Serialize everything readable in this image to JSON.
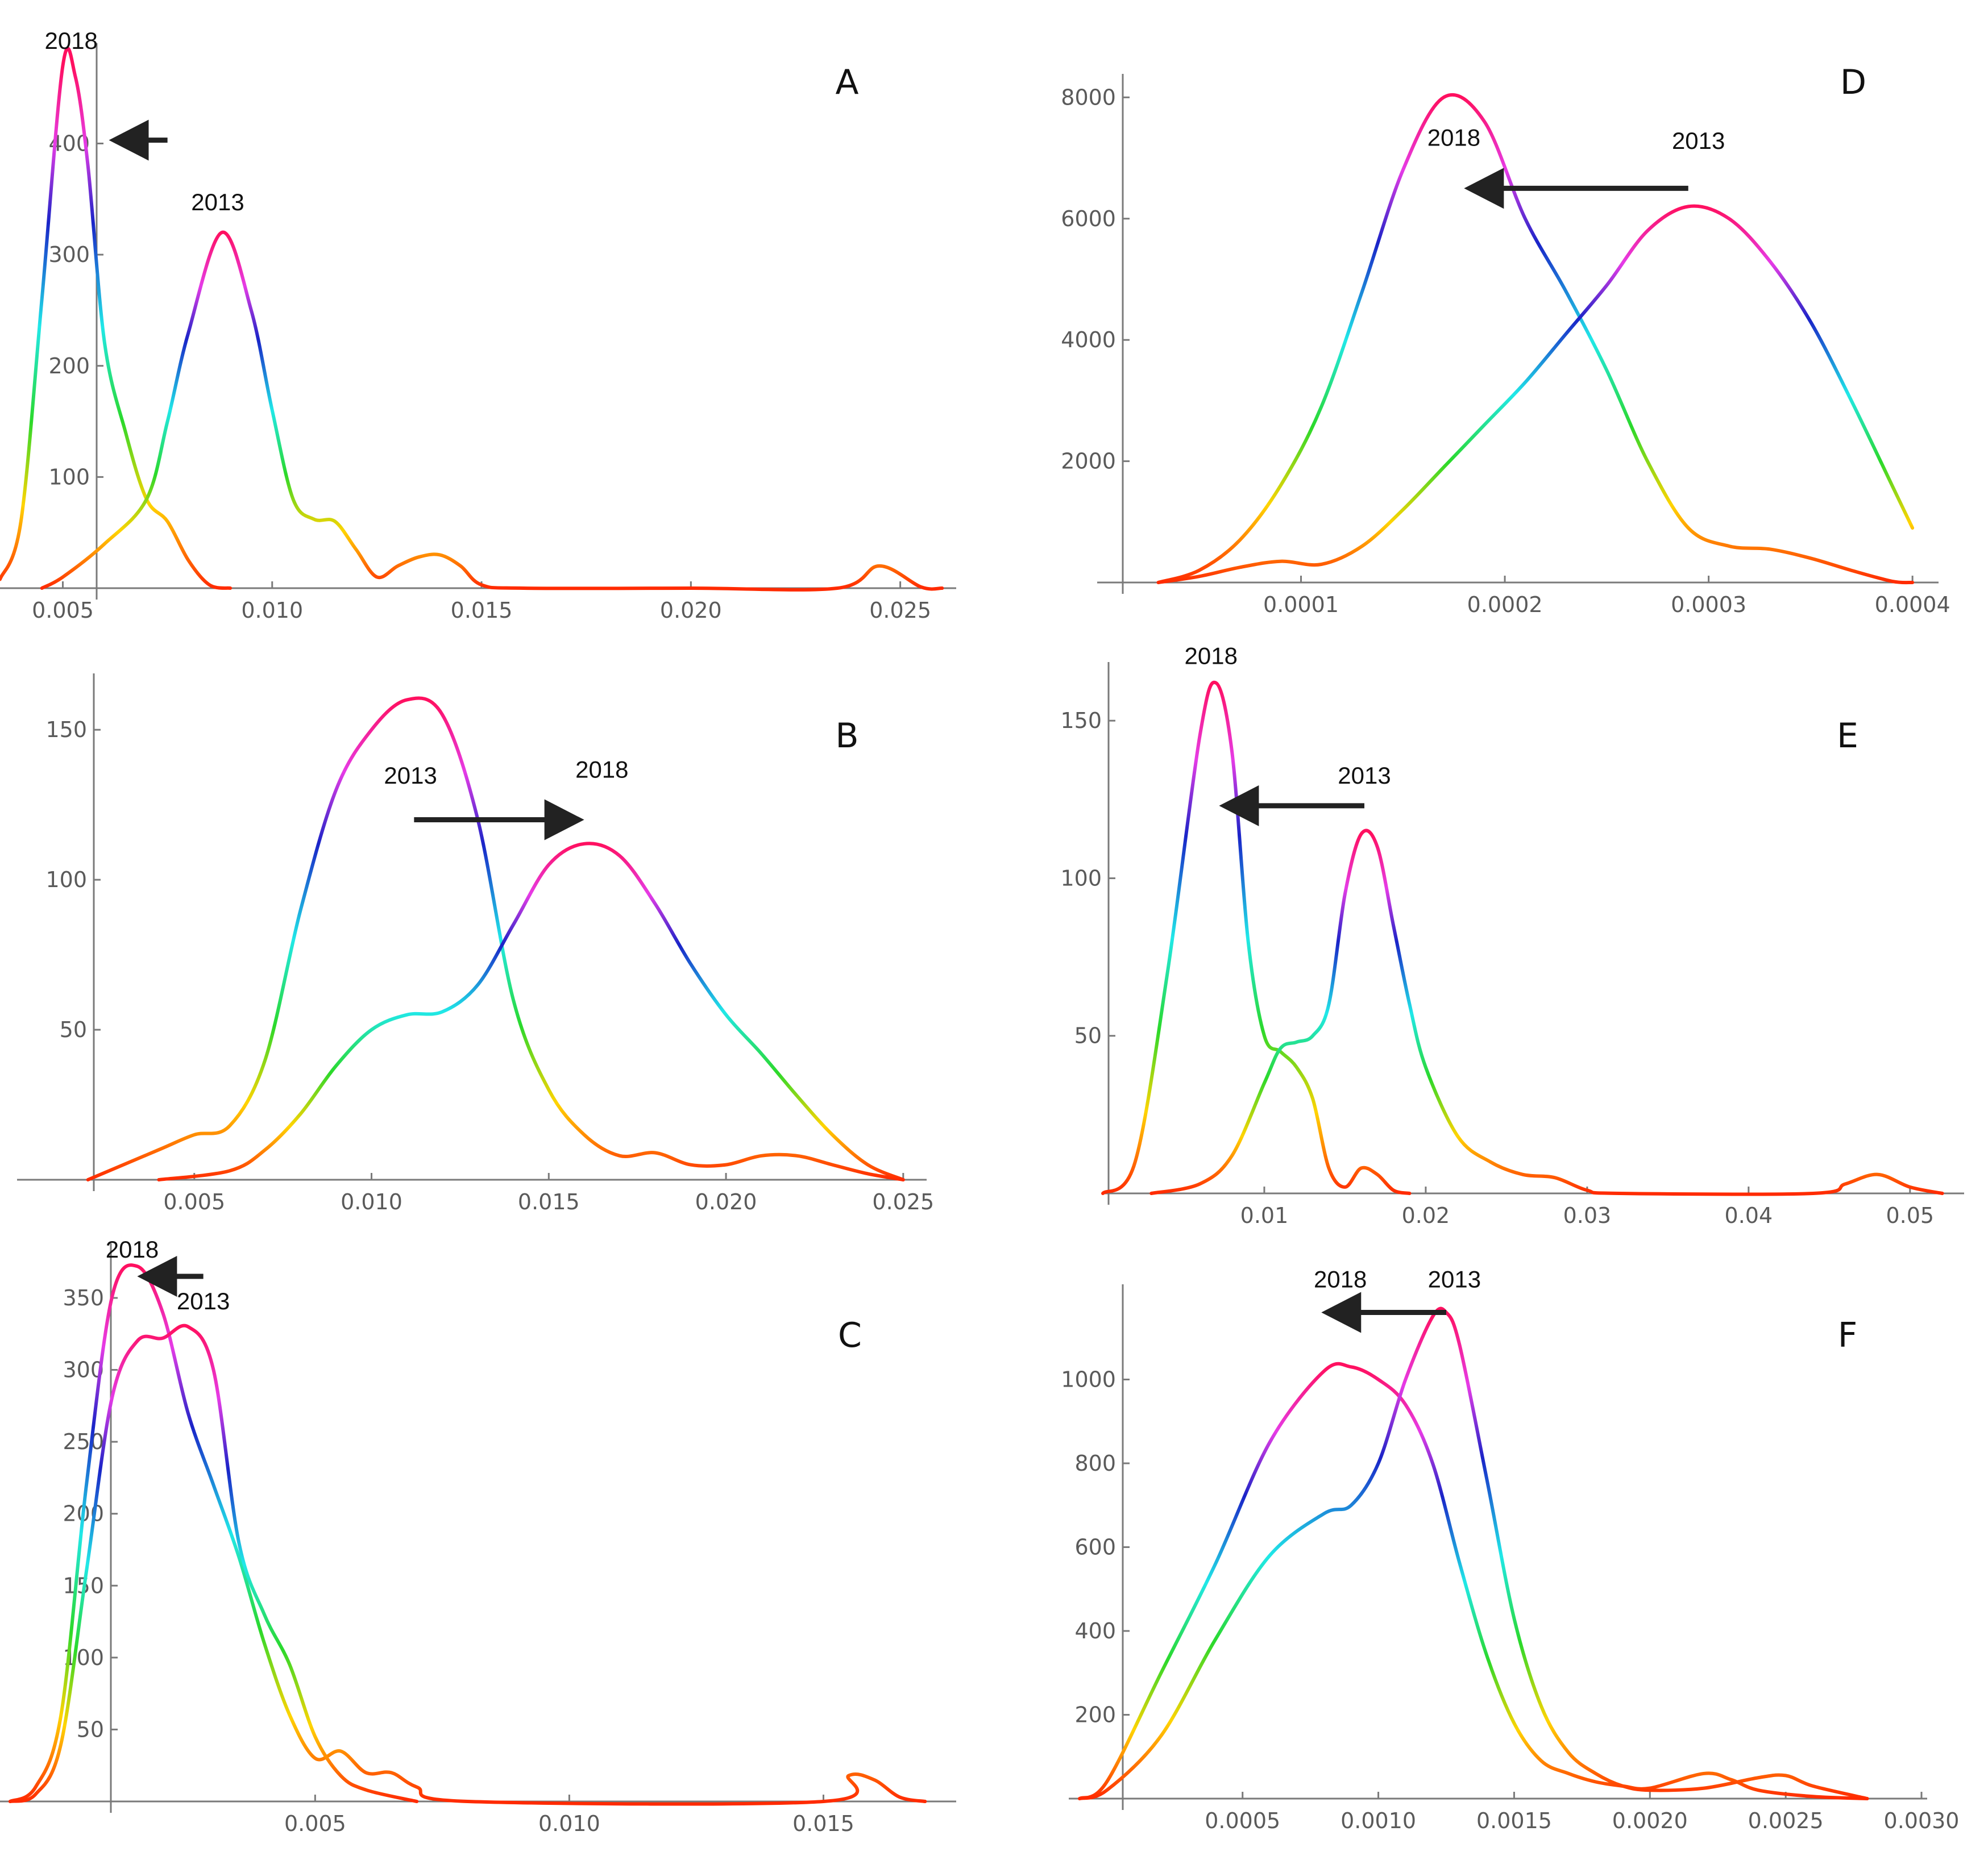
{
  "figure": {
    "description_colors": {
      "low_density": "#ff2a00",
      "mid_density": "#2bd92b",
      "high_density": "#ff1060",
      "axis": "#7a7a7a",
      "text": "#111111",
      "arrow": "#222222"
    }
  },
  "chart_data": [
    {
      "id": "A",
      "type": "line",
      "panel_label": "A",
      "xlim": [
        0.0035,
        0.0262
      ],
      "ylim": [
        0,
        480
      ],
      "xticks": [
        0.005,
        0.01,
        0.015,
        0.02,
        0.025
      ],
      "xtick_labels": [
        "0.005",
        "0.010",
        "0.015",
        "0.020",
        "0.025"
      ],
      "yticks": [
        100,
        200,
        300,
        400
      ],
      "ytick_labels": [
        "100",
        "200",
        "300",
        "400"
      ],
      "series": [
        {
          "name": "2018",
          "x": [
            0.0035,
            0.004,
            0.0045,
            0.005,
            0.0053,
            0.0056,
            0.006,
            0.0065,
            0.007,
            0.0075,
            0.008,
            0.0085,
            0.009
          ],
          "y": [
            8,
            60,
            260,
            470,
            460,
            380,
            220,
            140,
            80,
            60,
            25,
            3,
            0
          ]
        },
        {
          "name": "2013",
          "x": [
            0.0045,
            0.005,
            0.006,
            0.007,
            0.0075,
            0.008,
            0.0088,
            0.0095,
            0.01,
            0.0105,
            0.011,
            0.0115,
            0.012,
            0.0125,
            0.013,
            0.0135,
            0.014,
            0.0145,
            0.015,
            0.016,
            0.02,
            0.0235,
            0.0245,
            0.0255,
            0.026
          ],
          "y": [
            0,
            10,
            40,
            80,
            150,
            230,
            320,
            250,
            160,
            80,
            62,
            60,
            35,
            10,
            20,
            28,
            30,
            20,
            3,
            0,
            0,
            0,
            20,
            1,
            0
          ]
        }
      ],
      "annotations": [
        {
          "text": "2018",
          "x": 0.0052,
          "y": 485
        },
        {
          "text": "2013",
          "x": 0.0087,
          "y": 340
        }
      ],
      "arrow": {
        "from": [
          0.0075,
          403
        ],
        "to": [
          0.0061,
          403
        ],
        "direction": "left"
      }
    },
    {
      "id": "B",
      "type": "line",
      "panel_label": "B",
      "xlim": [
        0.0,
        0.0255
      ],
      "ylim": [
        0,
        165
      ],
      "xticks": [
        0.005,
        0.01,
        0.015,
        0.02,
        0.025
      ],
      "xtick_labels": [
        "0.005",
        "0.010",
        "0.015",
        "0.020",
        "0.025"
      ],
      "yticks": [
        50,
        100,
        150
      ],
      "ytick_labels": [
        "50",
        "100",
        "150"
      ],
      "series": [
        {
          "name": "2013",
          "x": [
            0.002,
            0.004,
            0.005,
            0.006,
            0.007,
            0.008,
            0.009,
            0.01,
            0.011,
            0.012,
            0.013,
            0.014,
            0.015,
            0.016,
            0.017,
            0.018,
            0.019,
            0.02,
            0.021,
            0.022,
            0.023,
            0.024,
            0.025
          ],
          "y": [
            0,
            10,
            15,
            18,
            40,
            90,
            130,
            150,
            160,
            155,
            120,
            60,
            30,
            15,
            8,
            9,
            5,
            5,
            8,
            8,
            5,
            2,
            0
          ]
        },
        {
          "name": "2018",
          "x": [
            0.004,
            0.006,
            0.007,
            0.008,
            0.009,
            0.01,
            0.011,
            0.012,
            0.013,
            0.014,
            0.015,
            0.016,
            0.017,
            0.018,
            0.019,
            0.02,
            0.021,
            0.022,
            0.023,
            0.024,
            0.025
          ],
          "y": [
            0,
            3,
            10,
            22,
            38,
            50,
            55,
            56,
            65,
            85,
            105,
            112,
            108,
            92,
            72,
            55,
            42,
            28,
            15,
            5,
            0
          ]
        }
      ],
      "annotations": [
        {
          "text": "2013",
          "x": 0.0111,
          "y": 132
        },
        {
          "text": "2018",
          "x": 0.0165,
          "y": 134
        }
      ],
      "arrow": {
        "from": [
          0.0112,
          120
        ],
        "to": [
          0.016,
          120
        ],
        "direction": "right"
      }
    },
    {
      "id": "C",
      "type": "line",
      "panel_label": "C",
      "xlim": [
        -0.0012,
        0.0175
      ],
      "ylim": [
        0,
        380
      ],
      "xticks": [
        0.005,
        0.01,
        0.015
      ],
      "xtick_labels": [
        "0.005",
        "0.010",
        "0.015"
      ],
      "yticks": [
        50,
        100,
        150,
        200,
        250,
        300,
        350
      ],
      "ytick_labels": [
        "50",
        "100",
        "150",
        "200",
        "250",
        "300",
        "350"
      ],
      "series": [
        {
          "name": "2018",
          "x": [
            -0.001,
            -0.0005,
            0.0,
            0.0005,
            0.001,
            0.0015,
            0.002,
            0.0025,
            0.003,
            0.0035,
            0.004,
            0.0045,
            0.005,
            0.0055,
            0.006,
            0.0065,
            0.007,
            0.008,
            0.015,
            0.0155,
            0.016,
            0.0165,
            0.017
          ],
          "y": [
            0,
            10,
            60,
            220,
            350,
            372,
            340,
            270,
            220,
            170,
            110,
            60,
            30,
            35,
            20,
            20,
            10,
            0,
            0,
            18,
            15,
            3,
            0
          ]
        },
        {
          "name": "2013",
          "x": [
            -0.001,
            -0.0005,
            0.0,
            0.0005,
            0.001,
            0.0015,
            0.002,
            0.0025,
            0.003,
            0.0035,
            0.004,
            0.0045,
            0.005,
            0.0055,
            0.006,
            0.007
          ],
          "y": [
            0,
            5,
            40,
            160,
            280,
            320,
            322,
            330,
            300,
            180,
            130,
            95,
            45,
            18,
            8,
            0
          ]
        }
      ],
      "annotations": [
        {
          "text": "2018",
          "x": 0.0014,
          "y": 378
        },
        {
          "text": "2013",
          "x": 0.0028,
          "y": 342
        }
      ],
      "arrow": {
        "from": [
          0.0028,
          365
        ],
        "to": [
          0.0015,
          365
        ],
        "direction": "left"
      }
    },
    {
      "id": "D",
      "type": "line",
      "panel_label": "D",
      "xlim": [
        0.0,
        0.00041
      ],
      "ylim": [
        0,
        8200
      ],
      "xticks": [
        0.0001,
        0.0002,
        0.0003,
        0.0004
      ],
      "xtick_labels": [
        "0.0001",
        "0.0002",
        "0.0003",
        "0.0004"
      ],
      "yticks": [
        2000,
        4000,
        6000,
        8000
      ],
      "ytick_labels": [
        "2000",
        "4000",
        "6000",
        "8000"
      ],
      "series": [
        {
          "name": "2018",
          "x": [
            3e-05,
            5e-05,
            7e-05,
            9e-05,
            0.00011,
            0.00013,
            0.00015,
            0.00017,
            0.00019,
            0.00021,
            0.00023,
            0.00025,
            0.00027,
            0.00029,
            0.00031,
            0.00033,
            0.00035,
            0.00037,
            0.00039,
            0.0004
          ],
          "y": [
            0,
            200,
            700,
            1600,
            2900,
            4800,
            6800,
            8000,
            7600,
            6000,
            4800,
            3500,
            2000,
            900,
            600,
            550,
            400,
            200,
            20,
            0
          ]
        },
        {
          "name": "2013",
          "x": [
            3e-05,
            5e-05,
            7e-05,
            9e-05,
            0.00011,
            0.00013,
            0.00015,
            0.00017,
            0.00019,
            0.00021,
            0.00023,
            0.00025,
            0.00027,
            0.00029,
            0.00031,
            0.00033,
            0.00035,
            0.00037,
            0.00039,
            0.0004
          ],
          "y": [
            0,
            100,
            250,
            350,
            300,
            600,
            1200,
            1900,
            2600,
            3300,
            4100,
            4900,
            5800,
            6200,
            6000,
            5300,
            4300,
            3000,
            1600,
            900
          ]
        }
      ],
      "annotations": [
        {
          "text": "2018",
          "x": 0.000175,
          "y": 7200
        },
        {
          "text": "2013",
          "x": 0.000295,
          "y": 7150
        }
      ],
      "arrow": {
        "from": [
          0.00029,
          6500
        ],
        "to": [
          0.00018,
          6500
        ],
        "direction": "left"
      }
    },
    {
      "id": "E",
      "type": "line",
      "panel_label": "E",
      "xlim": [
        0.0,
        0.053
      ],
      "ylim": [
        0,
        165
      ],
      "xticks": [
        0.01,
        0.02,
        0.03,
        0.04,
        0.05
      ],
      "xtick_labels": [
        "0.01",
        "0.02",
        "0.03",
        "0.04",
        "0.05"
      ],
      "yticks": [
        50,
        100,
        150
      ],
      "ytick_labels": [
        "50",
        "100",
        "150"
      ],
      "series": [
        {
          "name": "2018",
          "x": [
            0.0,
            0.002,
            0.004,
            0.006,
            0.007,
            0.008,
            0.009,
            0.01,
            0.011,
            0.012,
            0.013,
            0.014,
            0.015,
            0.016,
            0.017,
            0.018,
            0.019
          ],
          "y": [
            0,
            10,
            70,
            145,
            162,
            140,
            80,
            50,
            45,
            40,
            30,
            8,
            2,
            8,
            6,
            1,
            0
          ]
        },
        {
          "name": "2013",
          "x": [
            0.003,
            0.006,
            0.008,
            0.01,
            0.011,
            0.012,
            0.013,
            0.014,
            0.015,
            0.016,
            0.017,
            0.018,
            0.019,
            0.02,
            0.022,
            0.024,
            0.026,
            0.028,
            0.03,
            0.032,
            0.044,
            0.046,
            0.048,
            0.05,
            0.052
          ],
          "y": [
            0,
            3,
            12,
            35,
            46,
            48,
            50,
            60,
            95,
            114,
            110,
            85,
            60,
            40,
            18,
            10,
            6,
            5,
            1,
            0,
            0,
            3,
            6,
            2,
            0
          ]
        }
      ],
      "annotations": [
        {
          "text": "2018",
          "x": 0.0067,
          "y": 168
        },
        {
          "text": "2013",
          "x": 0.0162,
          "y": 130
        }
      ],
      "arrow": {
        "from": [
          0.0162,
          123
        ],
        "to": [
          0.0072,
          123
        ],
        "direction": "left"
      }
    },
    {
      "id": "F",
      "type": "line",
      "panel_label": "F",
      "xlim": [
        -0.00014,
        0.003
      ],
      "ylim": [
        0,
        1200
      ],
      "xticks": [
        0.0005,
        0.001,
        0.0015,
        0.002,
        0.0025,
        0.003
      ],
      "xtick_labels": [
        "0.0005",
        "0.0010",
        "0.0015",
        "0.0020",
        "0.0025",
        "0.0030"
      ],
      "yticks": [
        200,
        400,
        600,
        800,
        1000
      ],
      "ytick_labels": [
        "200",
        "400",
        "600",
        "800",
        "1000"
      ],
      "series": [
        {
          "name": "2018",
          "x": [
            -0.0001,
            0.0,
            0.0002,
            0.0004,
            0.0006,
            0.0008,
            0.0009,
            0.001,
            0.0011,
            0.0012,
            0.0013,
            0.0014,
            0.0015,
            0.0016,
            0.0017,
            0.0018,
            0.0019,
            0.002,
            0.0022,
            0.0023,
            0.0024,
            0.0026,
            0.0028
          ],
          "y": [
            0,
            40,
            300,
            560,
            850,
            1020,
            1030,
            1000,
            940,
            800,
            560,
            340,
            180,
            90,
            60,
            40,
            30,
            25,
            60,
            45,
            20,
            5,
            0
          ]
        },
        {
          "name": "2013",
          "x": [
            -0.0001,
            0.0,
            0.0002,
            0.0004,
            0.0006,
            0.0008,
            0.0009,
            0.001,
            0.0011,
            0.0012,
            0.00125,
            0.0013,
            0.0014,
            0.0015,
            0.0016,
            0.0017,
            0.0018,
            0.0019,
            0.002,
            0.0022,
            0.0024,
            0.0025,
            0.0026,
            0.0028
          ],
          "y": [
            0,
            20,
            150,
            380,
            580,
            680,
            700,
            800,
            1000,
            1150,
            1160,
            1080,
            760,
            430,
            220,
            110,
            60,
            30,
            20,
            25,
            50,
            55,
            30,
            0
          ]
        }
      ],
      "annotations": [
        {
          "text": "2018",
          "x": 0.00086,
          "y": 1220
        },
        {
          "text": "2013",
          "x": 0.00128,
          "y": 1220
        }
      ],
      "arrow": {
        "from": [
          0.00125,
          1160
        ],
        "to": [
          0.00079,
          1160
        ],
        "direction": "left"
      }
    }
  ]
}
